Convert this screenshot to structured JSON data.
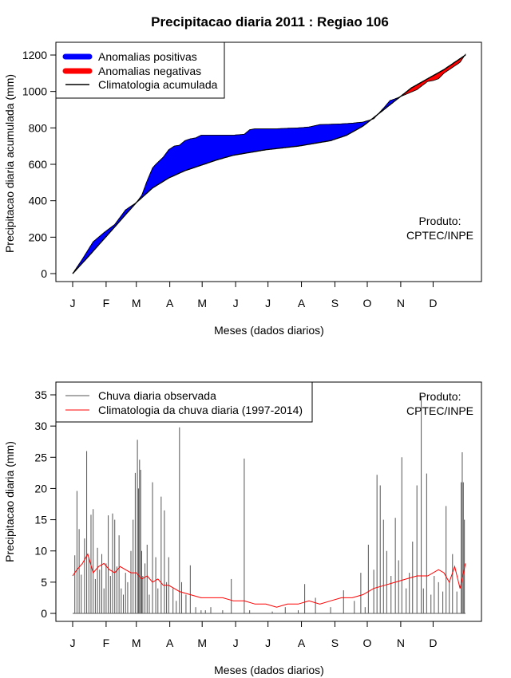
{
  "chart_data": [
    {
      "type": "area",
      "title": "Precipitacao diaria 2011 : Regiao 106",
      "xlabel": "Meses (dados diarios)",
      "ylabel": "Precipitacao diaria acumulada (mm)",
      "xlim": [
        1,
        365
      ],
      "ylim": [
        0,
        1200
      ],
      "yticks": [
        0,
        200,
        400,
        600,
        800,
        1000,
        1200
      ],
      "month_ticks": [
        {
          "label": "J",
          "day": 1
        },
        {
          "label": "F",
          "day": 32
        },
        {
          "label": "M",
          "day": 60
        },
        {
          "label": "A",
          "day": 91
        },
        {
          "label": "M",
          "day": 121
        },
        {
          "label": "J",
          "day": 152
        },
        {
          "label": "J",
          "day": 182
        },
        {
          "label": "A",
          "day": 213
        },
        {
          "label": "S",
          "day": 244
        },
        {
          "label": "O",
          "day": 274
        },
        {
          "label": "N",
          "day": 305
        },
        {
          "label": "D",
          "day": 335
        }
      ],
      "legend": [
        {
          "label": "Anomalias positivas",
          "color": "#0000ff",
          "kind": "band"
        },
        {
          "label": "Anomalias negativas",
          "color": "#ff0000",
          "kind": "band"
        },
        {
          "label": "Climatologia acumulada",
          "color": "#000000",
          "kind": "line"
        }
      ],
      "legend_position": "top-left",
      "annotation": [
        "Produto:",
        "CPTEC/INPE"
      ],
      "series": [
        {
          "name": "Climatologia acumulada",
          "x": [
            1,
            15,
            30,
            45,
            60,
            75,
            90,
            105,
            120,
            135,
            150,
            165,
            180,
            195,
            210,
            225,
            240,
            255,
            270,
            285,
            300,
            315,
            330,
            345,
            360,
            365
          ],
          "values": [
            0,
            90,
            190,
            290,
            390,
            470,
            525,
            565,
            595,
            625,
            650,
            665,
            680,
            690,
            700,
            715,
            730,
            760,
            810,
            880,
            950,
            1020,
            1070,
            1120,
            1180,
            1200
          ]
        },
        {
          "name": "Chuva acumulada observada",
          "x": [
            1,
            10,
            20,
            30,
            40,
            45,
            50,
            55,
            60,
            65,
            70,
            75,
            78,
            85,
            90,
            95,
            100,
            105,
            110,
            115,
            120,
            130,
            140,
            150,
            160,
            165,
            170,
            180,
            190,
            200,
            210,
            220,
            230,
            240,
            250,
            260,
            270,
            280,
            290,
            295,
            300,
            310,
            320,
            330,
            335,
            340,
            345,
            350,
            355,
            360,
            365
          ],
          "values": [
            0,
            80,
            175,
            225,
            270,
            310,
            350,
            370,
            390,
            430,
            510,
            580,
            600,
            640,
            680,
            700,
            705,
            730,
            740,
            745,
            760,
            760,
            760,
            760,
            765,
            790,
            795,
            795,
            795,
            798,
            800,
            805,
            818,
            820,
            822,
            826,
            832,
            850,
            915,
            950,
            960,
            985,
            1010,
            1055,
            1060,
            1070,
            1100,
            1120,
            1140,
            1160,
            1205
          ]
        }
      ]
    },
    {
      "type": "line",
      "xlabel": "Meses (dados diarios)",
      "ylabel": "Precipitacao diaria (mm)",
      "xlim": [
        1,
        365
      ],
      "ylim": [
        0,
        35
      ],
      "yticks": [
        0,
        5,
        10,
        15,
        20,
        25,
        30,
        35
      ],
      "month_ticks": [
        {
          "label": "J",
          "day": 1
        },
        {
          "label": "F",
          "day": 32
        },
        {
          "label": "M",
          "day": 60
        },
        {
          "label": "A",
          "day": 91
        },
        {
          "label": "M",
          "day": 121
        },
        {
          "label": "J",
          "day": 152
        },
        {
          "label": "J",
          "day": 182
        },
        {
          "label": "A",
          "day": 213
        },
        {
          "label": "S",
          "day": 244
        },
        {
          "label": "O",
          "day": 274
        },
        {
          "label": "N",
          "day": 305
        },
        {
          "label": "D",
          "day": 335
        }
      ],
      "legend": [
        {
          "label": "Chuva diaria observada",
          "color": "#555555"
        },
        {
          "label": "Climatologia da chuva diaria (1997-2014)",
          "color": "#ff0000"
        }
      ],
      "legend_position": "top-left",
      "annotation": [
        "Produto:",
        "CPTEC/INPE"
      ],
      "series": [
        {
          "name": "Chuva diaria observada",
          "kind": "spikes",
          "color": "#555555",
          "x": [
            3,
            5,
            7,
            9,
            12,
            14,
            16,
            18,
            20,
            22,
            24,
            26,
            28,
            30,
            32,
            34,
            36,
            38,
            40,
            42,
            44,
            46,
            48,
            50,
            52,
            55,
            57,
            59,
            61,
            62,
            63,
            64,
            65,
            66,
            68,
            70,
            72,
            75,
            78,
            80,
            83,
            86,
            88,
            90,
            94,
            97,
            100,
            102,
            106,
            110,
            115,
            120,
            124,
            129,
            140,
            148,
            160,
            165,
            186,
            198,
            210,
            216,
            226,
            240,
            252,
            262,
            268,
            272,
            275,
            280,
            283,
            286,
            289,
            292,
            296,
            300,
            303,
            306,
            310,
            313,
            316,
            320,
            324,
            326,
            329,
            333,
            336,
            340,
            344,
            347,
            350,
            353,
            357,
            361,
            362,
            363,
            364
          ],
          "values": [
            9.3,
            19.6,
            13.5,
            6.2,
            12.0,
            26.0,
            9.0,
            15.8,
            16.7,
            5.5,
            10.5,
            7.0,
            9.5,
            4.0,
            8.0,
            15.7,
            6.0,
            16.0,
            15.0,
            7.5,
            12.5,
            4.0,
            3.0,
            6.5,
            5.0,
            10.0,
            15.0,
            22.5,
            27.8,
            20.0,
            24.6,
            23.0,
            10.0,
            6.0,
            8.0,
            11.0,
            3.0,
            21.0,
            9.0,
            4.0,
            18.7,
            16.5,
            5.0,
            9.0,
            4.0,
            2.0,
            29.8,
            5.0,
            3.0,
            7.7,
            1.0,
            0.5,
            0.5,
            1.0,
            0.5,
            5.5,
            24.8,
            0.5,
            0.3,
            1.0,
            0.5,
            4.7,
            2.5,
            1.0,
            3.7,
            2.0,
            6.5,
            1.0,
            11.0,
            7.0,
            22.2,
            20.5,
            15.0,
            10.0,
            6.0,
            15.3,
            8.5,
            25.0,
            4.0,
            6.5,
            11.5,
            20.5,
            34.8,
            4.0,
            22.4,
            3.0,
            6.0,
            5.0,
            3.5,
            17.2,
            5.0,
            9.5,
            3.5,
            21.0,
            25.8,
            21.0,
            15.0
          ]
        },
        {
          "name": "Climatologia da chuva diaria (1997-2014)",
          "kind": "line",
          "color": "#ff0000",
          "x": [
            1,
            5,
            10,
            15,
            20,
            25,
            30,
            35,
            40,
            45,
            50,
            55,
            60,
            65,
            70,
            75,
            80,
            85,
            90,
            95,
            100,
            110,
            120,
            130,
            140,
            150,
            160,
            170,
            180,
            190,
            200,
            210,
            220,
            230,
            240,
            250,
            260,
            270,
            280,
            290,
            300,
            310,
            320,
            330,
            340,
            345,
            350,
            355,
            360,
            365
          ],
          "values": [
            6.0,
            7.0,
            8.0,
            9.5,
            6.5,
            7.5,
            8.0,
            7.0,
            6.5,
            7.5,
            7.0,
            6.5,
            6.5,
            5.5,
            6.0,
            5.0,
            5.5,
            4.5,
            4.5,
            4.0,
            3.5,
            3.0,
            2.5,
            2.5,
            2.5,
            2.0,
            2.0,
            1.5,
            1.5,
            1.0,
            1.5,
            1.5,
            2.0,
            1.5,
            2.0,
            2.5,
            2.5,
            3.0,
            4.0,
            4.5,
            5.0,
            5.5,
            6.0,
            6.0,
            7.0,
            6.5,
            5.0,
            7.5,
            4.0,
            8.0
          ]
        }
      ]
    }
  ]
}
